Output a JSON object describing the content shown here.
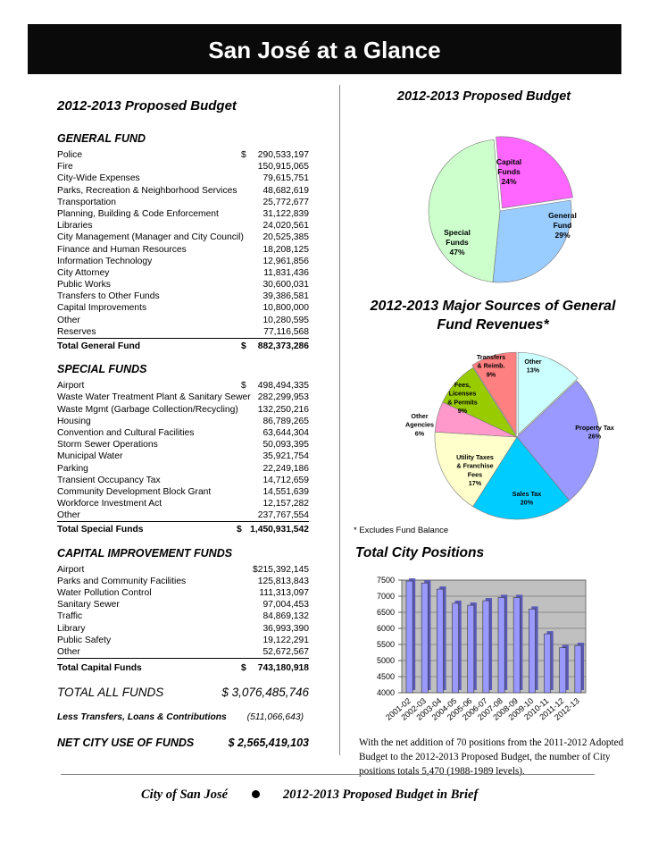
{
  "title": "San José at a Glance",
  "left": {
    "heading": "2012-2013 Proposed Budget",
    "general_fund": {
      "heading": "GENERAL FUND",
      "rows": [
        {
          "label": "Police",
          "dollar": "$",
          "amount": "290,533,197"
        },
        {
          "label": "Fire",
          "dollar": "",
          "amount": "150,915,065"
        },
        {
          "label": "City-Wide Expenses",
          "dollar": "",
          "amount": "79,615,751"
        },
        {
          "label": "Parks, Recreation & Neighborhood Services",
          "dollar": "",
          "amount": "48,682,619"
        },
        {
          "label": "Transportation",
          "dollar": "",
          "amount": "25,772,677"
        },
        {
          "label": "Planning, Building & Code Enforcement",
          "dollar": "",
          "amount": "31,122,839"
        },
        {
          "label": "Libraries",
          "dollar": "",
          "amount": "24,020,561"
        },
        {
          "label": "City Management (Manager and City Council)",
          "dollar": "",
          "amount": "20,525,385"
        },
        {
          "label": "Finance and Human Resources",
          "dollar": "",
          "amount": "18,208,125"
        },
        {
          "label": "Information Technology",
          "dollar": "",
          "amount": "12,961,856"
        },
        {
          "label": "City Attorney",
          "dollar": "",
          "amount": "11,831,436"
        },
        {
          "label": "Public Works",
          "dollar": "",
          "amount": "30,600,031"
        },
        {
          "label": "Transfers to Other Funds",
          "dollar": "",
          "amount": "39,386,581"
        },
        {
          "label": "Capital Improvements",
          "dollar": "",
          "amount": "10,800,000"
        },
        {
          "label": "Other",
          "dollar": "",
          "amount": "10,280,595"
        },
        {
          "label": "Reserves",
          "dollar": "",
          "amount": "77,116,568"
        }
      ],
      "total": {
        "label": "Total General Fund",
        "dollar": "$",
        "amount": "882,373,286"
      }
    },
    "special_funds": {
      "heading": "SPECIAL FUNDS",
      "rows": [
        {
          "label": "Airport",
          "dollar": "$",
          "amount": "498,494,335"
        },
        {
          "label": "Waste Water Treatment Plant & Sanitary Sewer",
          "dollar": "",
          "amount": "282,299,953"
        },
        {
          "label": "Waste Mgmt (Garbage Collection/Recycling)",
          "dollar": "",
          "amount": "132,250,216"
        },
        {
          "label": "Housing",
          "dollar": "",
          "amount": "86,789,265"
        },
        {
          "label": "Convention and Cultural Facilities",
          "dollar": "",
          "amount": "63,644,304"
        },
        {
          "label": "Storm Sewer Operations",
          "dollar": "",
          "amount": "50,093,395"
        },
        {
          "label": "Municipal Water",
          "dollar": "",
          "amount": "35,921,754"
        },
        {
          "label": "Parking",
          "dollar": "",
          "amount": "22,249,186"
        },
        {
          "label": "Transient Occupancy Tax",
          "dollar": "",
          "amount": "14,712,659"
        },
        {
          "label": "Community Development Block Grant",
          "dollar": "",
          "amount": "14,551,639"
        },
        {
          "label": "Workforce Investment Act",
          "dollar": "",
          "amount": "12,157,282"
        },
        {
          "label": "Other",
          "dollar": "",
          "amount": "237,767,554"
        }
      ],
      "total": {
        "label": "Total Special Funds",
        "dollar": "$",
        "amount": "1,450,931,542"
      }
    },
    "capital_funds": {
      "heading": "CAPITAL IMPROVEMENT FUNDS",
      "rows": [
        {
          "label": "Airport",
          "dollar": "",
          "amount": "$215,392,145"
        },
        {
          "label": "Parks and Community Facilities",
          "dollar": "",
          "amount": "125,813,843"
        },
        {
          "label": "Water Pollution Control",
          "dollar": "",
          "amount": "111,313,097"
        },
        {
          "label": "Sanitary Sewer",
          "dollar": "",
          "amount": "97,004,453"
        },
        {
          "label": "Traffic",
          "dollar": "",
          "amount": "84,869,132"
        },
        {
          "label": "Library",
          "dollar": "",
          "amount": "36,993,390"
        },
        {
          "label": "Public Safety",
          "dollar": "",
          "amount": "19,122,291"
        },
        {
          "label": "Other",
          "dollar": "",
          "amount": "52,672,567"
        }
      ],
      "total": {
        "label": "Total Capital Funds",
        "dollar": "$",
        "amount": "743,180,918"
      }
    },
    "total_all": {
      "label": "TOTAL ALL FUNDS",
      "amount": "$ 3,076,485,746"
    },
    "less_transfers": {
      "label": "Less Transfers, Loans & Contributions",
      "amount": "(511,066,643)"
    },
    "net_city": {
      "label": "NET CITY USE OF FUNDS",
      "amount": "$ 2,565,419,103"
    }
  },
  "chart_data": [
    {
      "type": "pie",
      "title": "2012-2013 Proposed Budget",
      "slices": [
        {
          "label": "Capital Funds",
          "value": 24,
          "pct_label": "24%",
          "color": "#FF66FF"
        },
        {
          "label": "General Fund",
          "value": 29,
          "pct_label": "29%",
          "color": "#99CCFF"
        },
        {
          "label": "Special Funds",
          "value": 47,
          "pct_label": "47%",
          "color": "#CCFFCC"
        }
      ]
    },
    {
      "type": "pie",
      "title": "2012-2013 Major Sources of General Fund Revenues*",
      "footnote": "* Excludes Fund Balance",
      "slices": [
        {
          "label": "Other",
          "value": 13,
          "pct_label": "13%",
          "color": "#CCFFFF"
        },
        {
          "label": "Property Tax",
          "value": 26,
          "pct_label": "26%",
          "color": "#9999FF"
        },
        {
          "label": "Sales Tax",
          "value": 20,
          "pct_label": "20%",
          "color": "#00CCFF"
        },
        {
          "label": "Utility Taxes & Franchise Fees",
          "value": 17,
          "pct_label": "17%",
          "color": "#FFFFCC"
        },
        {
          "label": "Other Agencies",
          "value": 6,
          "pct_label": "6%",
          "color": "#FF99CC"
        },
        {
          "label": "Fees, Licenses & Permits",
          "value": 9,
          "pct_label": "9%",
          "color": "#99CC00"
        },
        {
          "label": "Transfers & Reimb.",
          "value": 9,
          "pct_label": "9%",
          "color": "#FF8080"
        }
      ]
    },
    {
      "type": "bar",
      "title": "Total City Positions",
      "categories": [
        "2001-02",
        "2002-03",
        "2003-04",
        "2004-05",
        "2005-06",
        "2006-07",
        "2007-08",
        "2008-09",
        "2009-10",
        "2010-11",
        "2011-12",
        "2012-13"
      ],
      "values": [
        7470,
        7410,
        7220,
        6780,
        6720,
        6860,
        6960,
        6960,
        6600,
        5830,
        5400,
        5470
      ],
      "ylim": [
        4000,
        7500
      ],
      "yticks": [
        4000,
        4500,
        5000,
        5500,
        6000,
        6500,
        7000,
        7500
      ],
      "bar_color": "#9999FF",
      "note": "With the net addition of 70 positions from the 2011-2012 Adopted Budget to the 2012-2013 Proposed Budget, the number of City positions totals 5,470 (1988-1989 levels)."
    }
  ],
  "footer": {
    "left": "City of San José",
    "right": "2012-2013 Proposed Budget in Brief"
  }
}
